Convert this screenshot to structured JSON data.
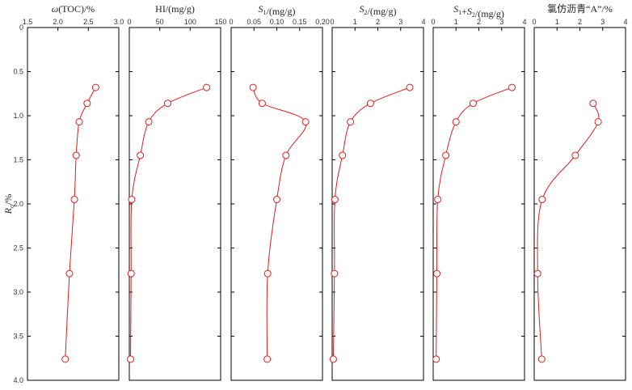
{
  "chart_data": {
    "type": "line",
    "y_axis": {
      "label": "Ro/%",
      "label_main": "R",
      "label_sub": "o",
      "label_suffix": "/%",
      "range": [
        0,
        4.0
      ],
      "inverted": true,
      "ticks": [
        "0",
        "0.5",
        "1.0",
        "1.5",
        "2.0",
        "2.5",
        "3.0",
        "3.5",
        "4.0"
      ]
    },
    "panels": [
      {
        "title": "ω(TOC)/%",
        "xlim": [
          1.5,
          3.0
        ],
        "ticks": [
          "1.5",
          "2.0",
          "2.5",
          "3.0"
        ],
        "series": [
          {
            "x": [
              2.62,
              2.48,
              2.35,
              2.3,
              2.27,
              2.19,
              2.12
            ],
            "y": [
              0.68,
              0.86,
              1.07,
              1.45,
              1.95,
              2.79,
              3.76
            ]
          }
        ]
      },
      {
        "title": "HI/(mg/g)",
        "xlim": [
          0,
          150
        ],
        "ticks": [
          "0",
          "50",
          "100",
          "150"
        ],
        "series": [
          {
            "x": [
              127,
              63,
              32,
              18,
              4,
              3,
              2
            ],
            "y": [
              0.68,
              0.86,
              1.07,
              1.45,
              1.95,
              2.79,
              3.76
            ]
          }
        ]
      },
      {
        "title": "S1/(mg/g)",
        "xlim": [
          0,
          0.2
        ],
        "ticks": [
          "0",
          "0.05",
          "0.10",
          "0.15",
          "0.20"
        ],
        "series": [
          {
            "x": [
              0.048,
              0.068,
              0.163,
              0.12,
              0.1,
              0.08,
              0.079
            ],
            "y": [
              0.68,
              0.86,
              1.07,
              1.45,
              1.95,
              2.79,
              3.76
            ]
          }
        ]
      },
      {
        "title": "S2/(mg/g)",
        "xlim": [
          0,
          4
        ],
        "ticks": [
          "0",
          "1",
          "2",
          "3",
          "4"
        ],
        "series": [
          {
            "x": [
              3.4,
              1.68,
              0.8,
              0.45,
              0.12,
              0.1,
              0.05
            ],
            "y": [
              0.68,
              0.86,
              1.07,
              1.45,
              1.95,
              2.79,
              3.76
            ]
          }
        ]
      },
      {
        "title": "S1+S2/(mg/g)",
        "xlim": [
          0,
          4
        ],
        "ticks": [
          "0",
          "1",
          "2",
          "3",
          "4"
        ],
        "series": [
          {
            "x": [
              3.45,
              1.75,
              1.0,
              0.55,
              0.2,
              0.16,
              0.13
            ],
            "y": [
              0.68,
              0.86,
              1.07,
              1.45,
              1.95,
              2.79,
              3.76
            ]
          }
        ]
      },
      {
        "title": "氯仿沥青“A”/%",
        "xlim": [
          0,
          4
        ],
        "ticks": [
          "0",
          "1",
          "2",
          "3",
          "4"
        ],
        "series": [
          {
            "x": [
              2.58,
              2.8,
              1.8,
              0.35,
              0.15,
              0.33
            ],
            "y": [
              0.86,
              1.07,
              1.45,
              1.95,
              2.79,
              3.76
            ]
          }
        ]
      }
    ],
    "colors": {
      "line": "#e01b1b",
      "marker_fill": "#ffffff",
      "axis": "#000000"
    },
    "grid": false
  }
}
